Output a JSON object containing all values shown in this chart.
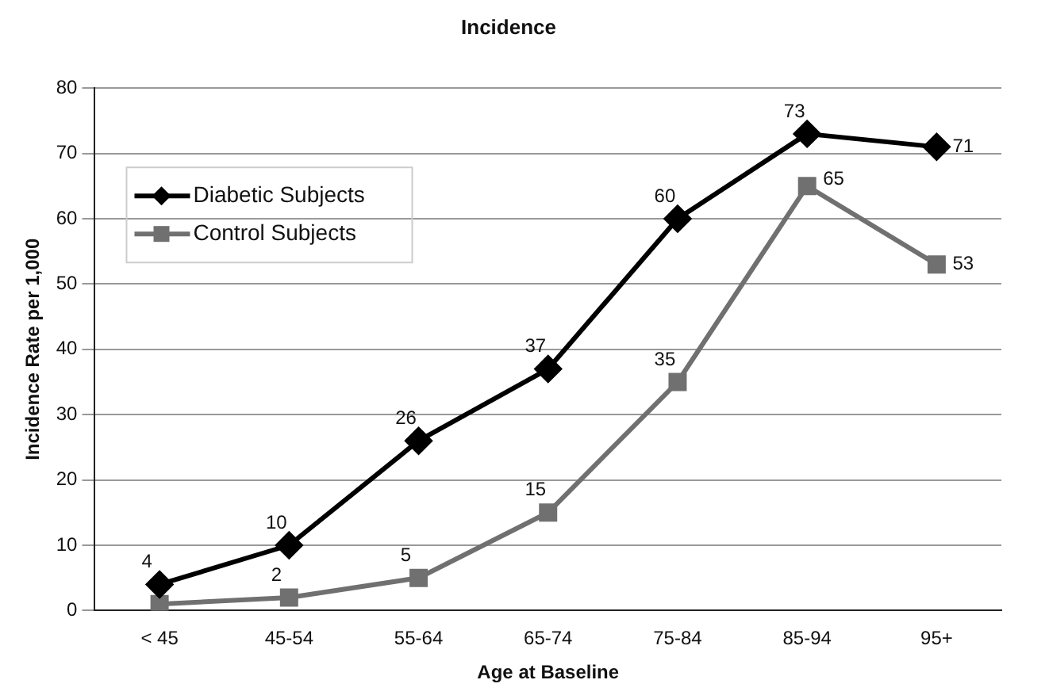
{
  "chart_data": {
    "type": "line",
    "title": "Incidence",
    "xlabel": "Age at Baseline",
    "ylabel": "Incidence Rate per 1,000",
    "categories": [
      "< 45",
      "45-54",
      "55-64",
      "65-74",
      "75-84",
      "85-94",
      "95+"
    ],
    "series": [
      {
        "name": "Diabetic Subjects",
        "color": "#000000",
        "marker": "diamond",
        "values": [
          4,
          10,
          26,
          37,
          60,
          73,
          71
        ],
        "value_labels": [
          "4",
          "10",
          "26",
          "37",
          "60",
          "73",
          "71"
        ]
      },
      {
        "name": "Control Subjects",
        "color": "#707070",
        "marker": "square",
        "values": [
          1,
          2,
          5,
          15,
          35,
          65,
          53
        ],
        "value_labels": [
          null,
          "2",
          "5",
          "15",
          "35",
          "65",
          "53"
        ]
      }
    ],
    "ylim": [
      0,
      80
    ],
    "yticks": [
      0,
      10,
      20,
      30,
      40,
      50,
      60,
      70,
      80
    ],
    "grid": "y",
    "legend": "top left",
    "line_style": "solid"
  }
}
